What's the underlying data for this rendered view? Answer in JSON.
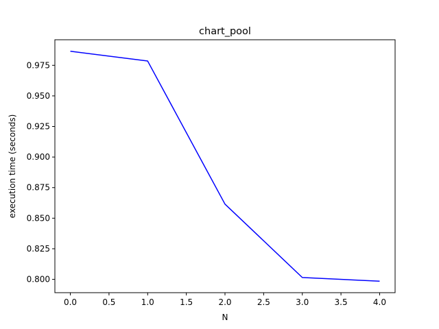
{
  "chart_data": {
    "type": "line",
    "title": "chart_pool",
    "xlabel": "N",
    "ylabel": "execution time (seconds)",
    "x": [
      0,
      1,
      2,
      3,
      4
    ],
    "series": [
      {
        "values": [
          0.9865,
          0.9785,
          0.8615,
          0.8015,
          0.7985
        ],
        "color": "#0000ff"
      }
    ],
    "xlim": [
      -0.2,
      4.2
    ],
    "ylim": [
      0.7891,
      0.9959
    ],
    "xticks": [
      0.0,
      0.5,
      1.0,
      1.5,
      2.0,
      2.5,
      3.0,
      3.5,
      4.0
    ],
    "xtick_labels": [
      "0.0",
      "0.5",
      "1.0",
      "1.5",
      "2.0",
      "2.5",
      "3.0",
      "3.5",
      "4.0"
    ],
    "yticks": [
      0.8,
      0.825,
      0.85,
      0.875,
      0.9,
      0.925,
      0.95,
      0.975
    ],
    "ytick_labels": [
      "0.800",
      "0.825",
      "0.850",
      "0.875",
      "0.900",
      "0.925",
      "0.950",
      "0.975"
    ],
    "grid": false,
    "legend": "none"
  }
}
